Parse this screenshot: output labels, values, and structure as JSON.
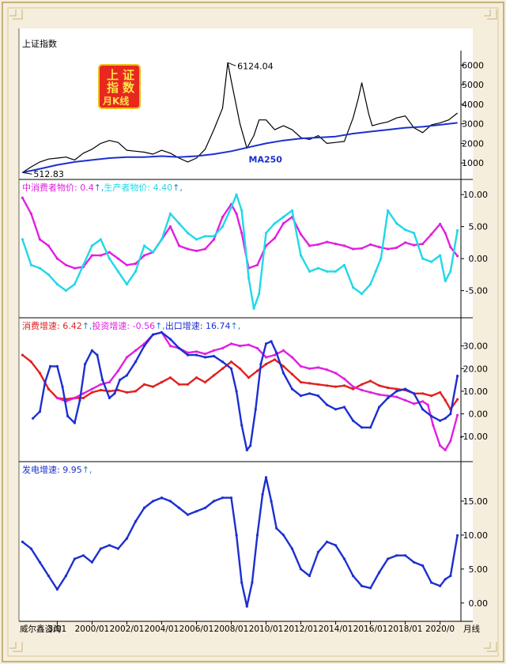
{
  "chart_data": [
    {
      "type": "line",
      "title": "上证指数",
      "logo": "上 证 指 数 月K线",
      "peak_label": "6124.04",
      "low_label": "512.83",
      "ma_label": "MA250",
      "y_ticks": [
        1000,
        2000,
        3000,
        4000,
        5000,
        6000
      ],
      "ylim": [
        400,
        6500
      ],
      "series": [
        {
          "name": "上证指数",
          "color": "#000000",
          "x": [
            1996.0,
            1996.5,
            1997.0,
            1997.5,
            1998.0,
            1998.5,
            1999.0,
            1999.5,
            2000.0,
            2000.5,
            2001.0,
            2001.5,
            2002.0,
            2002.5,
            2003.0,
            2003.5,
            2004.0,
            2004.5,
            2005.0,
            2005.5,
            2006.0,
            2006.5,
            2007.0,
            2007.5,
            2007.8,
            2008.0,
            2008.5,
            2008.9,
            2009.3,
            2009.6,
            2010.0,
            2010.5,
            2011.0,
            2011.5,
            2012.0,
            2012.5,
            2013.0,
            2013.5,
            2014.0,
            2014.5,
            2015.0,
            2015.3,
            2015.5,
            2015.9,
            2016.1,
            2016.5,
            2017.0,
            2017.5,
            2018.0,
            2018.5,
            2019.0,
            2019.5,
            2020.0,
            2020.5,
            2021.0
          ],
          "values": [
            512.83,
            800,
            1050,
            1200,
            1250,
            1300,
            1150,
            1500,
            1700,
            2000,
            2150,
            2050,
            1650,
            1600,
            1550,
            1450,
            1650,
            1500,
            1250,
            1050,
            1250,
            1700,
            2700,
            3800,
            6124.04,
            5200,
            3000,
            1750,
            2400,
            3200,
            3200,
            2700,
            2900,
            2700,
            2300,
            2200,
            2400,
            2000,
            2050,
            2100,
            3300,
            4300,
            5100,
            3500,
            2900,
            3000,
            3100,
            3300,
            3400,
            2800,
            2550,
            2950,
            3050,
            3200,
            3550
          ]
        },
        {
          "name": "MA250",
          "color": "#1c2fd0",
          "x": [
            1996.0,
            1997.0,
            1998.0,
            1999.0,
            2000.0,
            2001.0,
            2002.0,
            2003.0,
            2004.0,
            2005.0,
            2006.0,
            2007.0,
            2008.0,
            2009.0,
            2010.0,
            2011.0,
            2012.0,
            2013.0,
            2014.0,
            2015.0,
            2016.0,
            2017.0,
            2018.0,
            2019.0,
            2020.0,
            2021.0
          ],
          "values": [
            512.83,
            700,
            900,
            1050,
            1150,
            1250,
            1300,
            1300,
            1350,
            1300,
            1350,
            1450,
            1600,
            1800,
            2000,
            2150,
            2250,
            2300,
            2350,
            2500,
            2600,
            2700,
            2800,
            2850,
            2950,
            3050
          ]
        }
      ]
    },
    {
      "type": "line",
      "legend": [
        {
          "name": "中消费者物价:",
          "value": "0.4",
          "arrow": "↑",
          "color": "#e020e0"
        },
        {
          "name": "生产者物价:",
          "value": "4.40",
          "arrow": "↑",
          "color": "#20d8e8"
        }
      ],
      "y_ticks": [
        -5.0,
        0.0,
        5.0,
        10.0
      ],
      "y_tick_labels": [
        "-5.00",
        "0.00",
        "5.00",
        "10.00"
      ],
      "ylim": [
        -8.5,
        11.5
      ],
      "series": [
        {
          "name": "消费者物价",
          "color": "#e020e0",
          "x": [
            1996.0,
            1996.5,
            1997.0,
            1997.5,
            1998.0,
            1998.5,
            1999.0,
            1999.5,
            2000.0,
            2000.5,
            2001.0,
            2001.5,
            2002.0,
            2002.5,
            2003.0,
            2003.5,
            2004.0,
            2004.5,
            2005.0,
            2005.5,
            2006.0,
            2006.5,
            2007.0,
            2007.5,
            2008.0,
            2008.3,
            2008.6,
            2009.0,
            2009.5,
            2010.0,
            2010.5,
            2011.0,
            2011.5,
            2012.0,
            2012.5,
            2013.0,
            2013.5,
            2014.0,
            2014.5,
            2015.0,
            2015.5,
            2016.0,
            2016.5,
            2017.0,
            2017.5,
            2018.0,
            2018.5,
            2019.0,
            2019.5,
            2020.0,
            2020.3,
            2020.6,
            2021.0
          ],
          "values": [
            9.5,
            7.0,
            3.0,
            2.0,
            0.0,
            -1.0,
            -1.5,
            -1.3,
            0.5,
            0.5,
            1.0,
            0.0,
            -1.0,
            -0.8,
            0.5,
            1.0,
            3.0,
            5.0,
            2.0,
            1.5,
            1.2,
            1.5,
            3.0,
            6.5,
            8.5,
            7.0,
            4.0,
            -1.5,
            -1.0,
            2.0,
            3.2,
            5.5,
            6.5,
            3.8,
            2.0,
            2.2,
            2.6,
            2.3,
            2.0,
            1.5,
            1.6,
            2.2,
            1.8,
            1.5,
            1.7,
            2.5,
            2.1,
            2.3,
            3.8,
            5.4,
            4.0,
            1.8,
            0.4
          ]
        },
        {
          "name": "生产者物价",
          "color": "#20d8e8",
          "x": [
            1996.0,
            1996.5,
            1997.0,
            1997.5,
            1998.0,
            1998.5,
            1999.0,
            1999.5,
            2000.0,
            2000.5,
            2001.0,
            2001.5,
            2002.0,
            2002.5,
            2003.0,
            2003.5,
            2004.0,
            2004.5,
            2005.0,
            2005.5,
            2006.0,
            2006.5,
            2007.0,
            2007.5,
            2008.0,
            2008.3,
            2008.6,
            2009.0,
            2009.3,
            2009.6,
            2010.0,
            2010.5,
            2011.0,
            2011.5,
            2012.0,
            2012.5,
            2013.0,
            2013.5,
            2014.0,
            2014.5,
            2015.0,
            2015.5,
            2016.0,
            2016.3,
            2016.6,
            2017.0,
            2017.5,
            2018.0,
            2018.5,
            2019.0,
            2019.5,
            2020.0,
            2020.3,
            2020.6,
            2021.0
          ],
          "values": [
            3.0,
            -1.0,
            -1.5,
            -2.5,
            -4.0,
            -5.0,
            -4.0,
            -1.0,
            2.0,
            3.0,
            0.0,
            -2.0,
            -4.0,
            -2.0,
            2.0,
            1.0,
            3.0,
            7.0,
            5.5,
            4.0,
            3.0,
            3.5,
            3.5,
            5.0,
            8.0,
            10.0,
            7.5,
            -3.0,
            -7.8,
            -5.5,
            4.0,
            5.5,
            6.5,
            7.5,
            0.5,
            -2.0,
            -1.5,
            -2.0,
            -2.0,
            -1.0,
            -4.5,
            -5.5,
            -4.0,
            -2.0,
            0.0,
            7.5,
            5.5,
            4.5,
            4.0,
            0.0,
            -0.5,
            0.5,
            -3.5,
            -2.0,
            4.4
          ]
        }
      ]
    },
    {
      "type": "line",
      "legend": [
        {
          "name": "消费增速:",
          "value": "6.42",
          "arrow": "↑",
          "color": "#e02020"
        },
        {
          "name": "投资增速:",
          "value": "-0.56",
          "arrow": "↑",
          "color": "#e020e0"
        },
        {
          "name": "出口增速:",
          "value": "16.74",
          "arrow": "↑",
          "color": "#1c2fd0"
        }
      ],
      "y_ticks": [
        -10.0,
        0.0,
        10.0,
        20.0,
        30.0
      ],
      "y_tick_labels": [
        "-10.00",
        "0.00",
        "10.00",
        "20.00",
        "30.00"
      ],
      "ylim": [
        -19,
        40
      ],
      "series": [
        {
          "name": "消费增速",
          "color": "#e02020",
          "x": [
            1996.0,
            1996.5,
            1997.0,
            1997.5,
            1998.0,
            1998.5,
            1999.0,
            1999.5,
            2000.0,
            2000.5,
            2001.0,
            2001.5,
            2002.0,
            2002.5,
            2003.0,
            2003.5,
            2004.0,
            2004.5,
            2005.0,
            2005.5,
            2006.0,
            2006.5,
            2007.0,
            2007.5,
            2008.0,
            2008.5,
            2009.0,
            2009.5,
            2010.0,
            2010.5,
            2011.0,
            2011.5,
            2012.0,
            2012.5,
            2013.0,
            2013.5,
            2014.0,
            2014.5,
            2015.0,
            2015.5,
            2016.0,
            2016.5,
            2017.0,
            2017.5,
            2018.0,
            2018.5,
            2019.0,
            2019.5,
            2020.0,
            2020.3,
            2020.6,
            2021.0
          ],
          "values": [
            26.0,
            23.0,
            18.0,
            11.0,
            7.0,
            6.5,
            7.0,
            7.0,
            9.5,
            10.5,
            10.0,
            10.5,
            9.5,
            10.0,
            13.0,
            12.0,
            14.0,
            16.0,
            13.0,
            13.0,
            16.0,
            14.0,
            17.0,
            20.0,
            23.0,
            20.0,
            16.0,
            19.0,
            22.0,
            24.0,
            21.0,
            17.5,
            14.0,
            13.5,
            13.0,
            12.5,
            12.0,
            12.5,
            11.0,
            13.0,
            14.5,
            12.5,
            11.5,
            11.0,
            10.5,
            9.0,
            9.0,
            8.0,
            9.5,
            6.0,
            2.0,
            6.42
          ]
        },
        {
          "name": "投资增速",
          "color": "#e020e0",
          "x": [
            1998.0,
            1998.5,
            1999.0,
            1999.5,
            2000.0,
            2000.5,
            2001.0,
            2001.5,
            2002.0,
            2002.5,
            2003.0,
            2003.5,
            2004.0,
            2004.5,
            2005.0,
            2005.5,
            2006.0,
            2006.5,
            2007.0,
            2007.5,
            2008.0,
            2008.5,
            2009.0,
            2009.5,
            2010.0,
            2010.5,
            2011.0,
            2011.5,
            2012.0,
            2012.5,
            2013.0,
            2013.5,
            2014.0,
            2014.5,
            2015.0,
            2015.5,
            2016.0,
            2016.5,
            2017.0,
            2017.5,
            2018.0,
            2018.5,
            2019.0,
            2019.3,
            2019.6,
            2020.0,
            2020.3,
            2020.6,
            2021.0
          ],
          "values": [
            7.0,
            5.5,
            7.0,
            9.0,
            11.0,
            13.0,
            14.0,
            19.0,
            25.0,
            28.0,
            31.0,
            35.0,
            36.0,
            30.0,
            29.0,
            27.0,
            27.5,
            26.5,
            28.0,
            29.0,
            31.0,
            30.0,
            30.5,
            29.0,
            25.0,
            26.0,
            28.0,
            25.0,
            21.0,
            20.0,
            20.5,
            19.5,
            18.0,
            15.5,
            12.0,
            10.5,
            9.5,
            8.5,
            8.0,
            7.5,
            6.0,
            4.5,
            5.5,
            4.0,
            -5.0,
            -14.0,
            -16.0,
            -12.0,
            -0.56
          ]
        },
        {
          "name": "出口增速",
          "color": "#1c2fd0",
          "x": [
            1996.6,
            1997.0,
            1997.3,
            1997.6,
            1998.0,
            1998.3,
            1998.6,
            1999.0,
            1999.3,
            1999.6,
            2000.0,
            2000.3,
            2000.6,
            2001.0,
            2001.3,
            2001.6,
            2002.0,
            2002.5,
            2003.0,
            2003.5,
            2004.0,
            2004.5,
            2005.0,
            2005.5,
            2006.0,
            2006.5,
            2007.0,
            2007.5,
            2008.0,
            2008.3,
            2008.6,
            2008.9,
            2009.1,
            2009.4,
            2009.7,
            2010.0,
            2010.3,
            2010.6,
            2011.0,
            2011.5,
            2012.0,
            2012.5,
            2013.0,
            2013.5,
            2014.0,
            2014.5,
            2015.0,
            2015.5,
            2016.0,
            2016.5,
            2017.0,
            2017.5,
            2018.0,
            2018.5,
            2019.0,
            2019.5,
            2020.0,
            2020.3,
            2020.6,
            2021.0
          ],
          "values": [
            -2.0,
            1.0,
            14.0,
            21.0,
            21.0,
            12.0,
            -1.0,
            -4.0,
            6.0,
            22.0,
            28.0,
            26.0,
            15.0,
            7.0,
            9.0,
            15.0,
            17.0,
            23.0,
            30.0,
            35.0,
            36.0,
            33.0,
            29.0,
            26.0,
            26.0,
            25.0,
            25.5,
            23.0,
            20.0,
            10.0,
            -5.0,
            -16.0,
            -14.0,
            2.0,
            22.0,
            31.0,
            32.0,
            27.0,
            18.0,
            11.0,
            8.0,
            9.0,
            8.0,
            4.0,
            2.0,
            3.0,
            -3.0,
            -6.0,
            -6.0,
            3.0,
            7.0,
            10.0,
            11.0,
            9.0,
            2.0,
            -1.0,
            -3.0,
            -2.0,
            0.0,
            16.74
          ]
        }
      ]
    },
    {
      "type": "line",
      "legend": [
        {
          "name": "发电增速:",
          "value": "9.95",
          "arrow": "↑",
          "color": "#1c2fd0"
        }
      ],
      "y_ticks": [
        0.0,
        5.0,
        10.0,
        15.0
      ],
      "y_tick_labels": [
        "0.00",
        "5.00",
        "10.00",
        "15.00"
      ],
      "ylim": [
        -2,
        20
      ],
      "series": [
        {
          "name": "发电增速",
          "color": "#1c2fd0",
          "x": [
            1996.0,
            1996.5,
            1997.0,
            1997.5,
            1998.0,
            1998.5,
            1999.0,
            1999.5,
            2000.0,
            2000.5,
            2001.0,
            2001.5,
            2002.0,
            2002.5,
            2003.0,
            2003.5,
            2004.0,
            2004.5,
            2005.0,
            2005.5,
            2006.0,
            2006.5,
            2007.0,
            2007.5,
            2008.0,
            2008.3,
            2008.6,
            2008.9,
            2009.2,
            2009.5,
            2009.8,
            2010.0,
            2010.3,
            2010.6,
            2011.0,
            2011.5,
            2012.0,
            2012.5,
            2013.0,
            2013.5,
            2014.0,
            2014.5,
            2015.0,
            2015.5,
            2016.0,
            2016.5,
            2017.0,
            2017.5,
            2018.0,
            2018.5,
            2019.0,
            2019.5,
            2020.0,
            2020.3,
            2020.6,
            2021.0
          ],
          "values": [
            9.0,
            8.0,
            6.0,
            4.0,
            2.0,
            4.0,
            6.5,
            7.0,
            6.0,
            8.0,
            8.5,
            8.0,
            9.5,
            12.0,
            14.0,
            15.0,
            15.5,
            15.0,
            14.0,
            13.0,
            13.5,
            14.0,
            15.0,
            15.5,
            15.5,
            10.0,
            3.0,
            -0.5,
            3.0,
            10.0,
            16.0,
            18.5,
            15.0,
            11.0,
            10.0,
            8.0,
            5.0,
            4.0,
            7.5,
            9.0,
            8.5,
            6.5,
            4.0,
            2.5,
            2.2,
            4.5,
            6.5,
            7.0,
            7.0,
            6.0,
            5.5,
            3.0,
            2.5,
            3.5,
            4.0,
            9.95
          ]
        }
      ]
    }
  ],
  "x_axis": {
    "labels": [
      "3/01",
      "2000/01",
      "2002/01",
      "2004/01",
      "2006/01",
      "2008/01",
      "2010/01",
      "2012/01",
      "2014/01",
      "2016/01",
      "2018/01",
      "2020/0"
    ],
    "positions": [
      1998.0,
      2000.0,
      2002.0,
      2004.0,
      2006.0,
      2008.0,
      2010.0,
      2012.0,
      2014.0,
      2016.0,
      2018.0,
      2020.0
    ],
    "suffix": "月线",
    "xlim": [
      1995.8,
      2021.2
    ]
  },
  "footer": {
    "brand": "威尔鑫咨询"
  }
}
